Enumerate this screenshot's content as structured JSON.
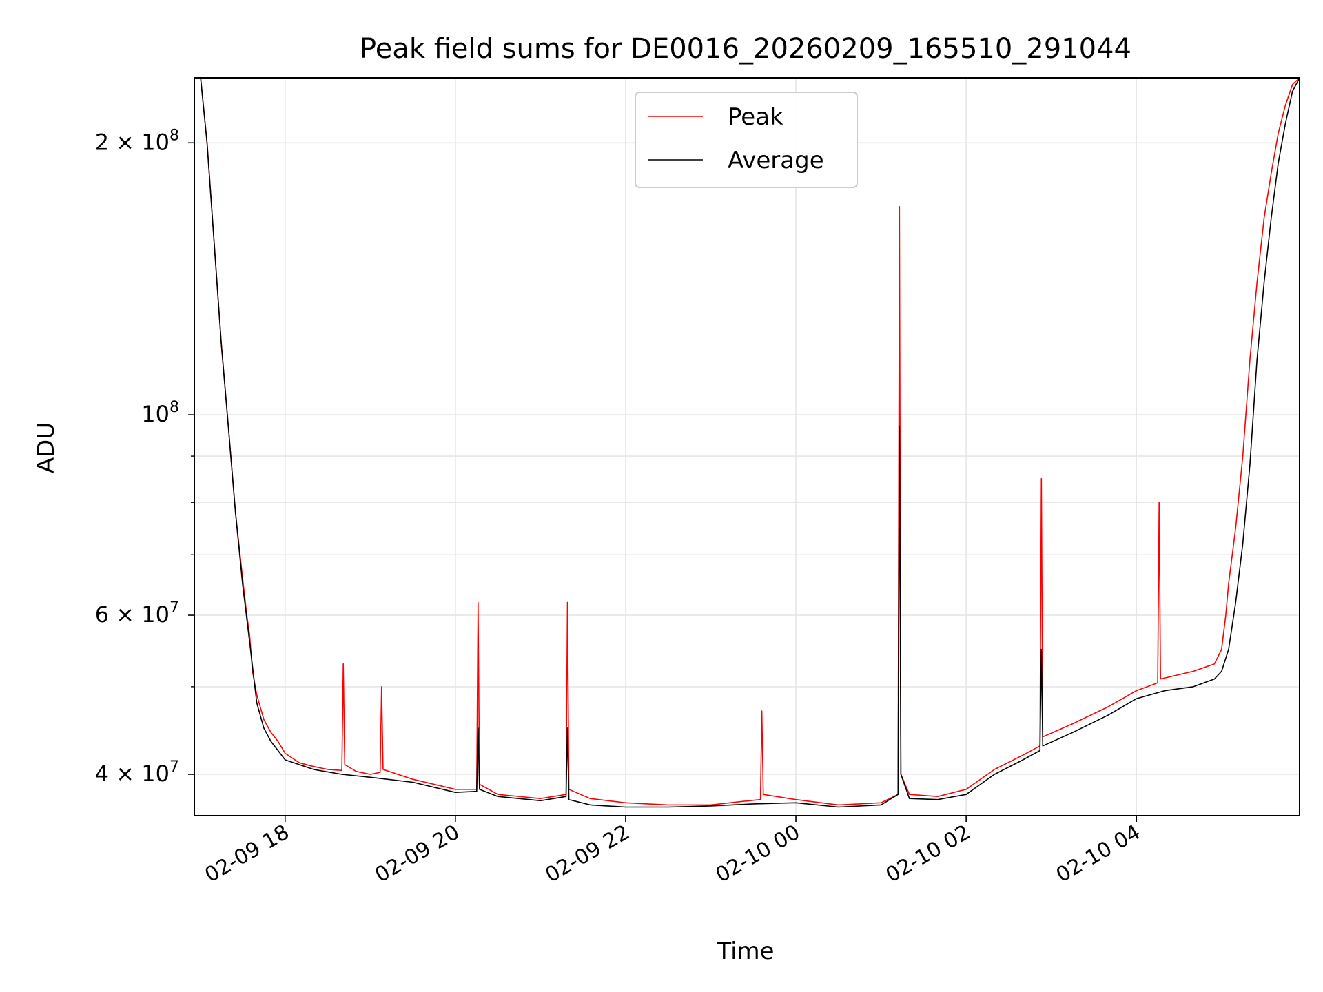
{
  "chart_data": {
    "type": "line",
    "title": "Peak field sums for DE0016_20260209_165510_291044",
    "xlabel": "Time",
    "ylabel": "ADU",
    "yscale": "log",
    "ylim": [
      36000000,
      236000000
    ],
    "xlim": [
      "2026-02-09 16:56",
      "2026-02-10 05:55"
    ],
    "grid": true,
    "legend_position": "upper center",
    "x_ticks": [
      {
        "value": "2026-02-09 18:00",
        "label": "02-09 18"
      },
      {
        "value": "2026-02-09 20:00",
        "label": "02-09 20"
      },
      {
        "value": "2026-02-09 22:00",
        "label": "02-09 22"
      },
      {
        "value": "2026-02-10 00:00",
        "label": "02-10 00"
      },
      {
        "value": "2026-02-10 02:00",
        "label": "02-10 02"
      },
      {
        "value": "2026-02-10 04:00",
        "label": "02-10 04"
      }
    ],
    "y_ticks": [
      {
        "value": 40000000,
        "base": "4 × 10",
        "exp": "7"
      },
      {
        "value": 60000000,
        "base": "6 × 10",
        "exp": "7"
      },
      {
        "value": 100000000,
        "base": "10",
        "exp": "8"
      },
      {
        "value": 200000000,
        "base": "2 × 10",
        "exp": "8"
      }
    ],
    "y_minor_ticks": [
      50000000,
      70000000,
      80000000,
      90000000
    ],
    "series": [
      {
        "name": "Peak",
        "color": "#ff0000",
        "x": [
          "2026-02-09 17:00",
          "2026-02-09 17:05",
          "2026-02-09 17:10",
          "2026-02-09 17:15",
          "2026-02-09 17:20",
          "2026-02-09 17:25",
          "2026-02-09 17:30",
          "2026-02-09 17:33",
          "2026-02-09 17:35",
          "2026-02-09 17:37",
          "2026-02-09 17:40",
          "2026-02-09 17:45",
          "2026-02-09 17:50",
          "2026-02-09 17:55",
          "2026-02-09 18:00",
          "2026-02-09 18:10",
          "2026-02-09 18:20",
          "2026-02-09 18:30",
          "2026-02-09 18:40",
          "2026-02-09 18:41",
          "2026-02-09 18:42",
          "2026-02-09 18:50",
          "2026-02-09 19:00",
          "2026-02-09 19:07",
          "2026-02-09 19:08",
          "2026-02-09 19:09",
          "2026-02-09 19:30",
          "2026-02-09 20:00",
          "2026-02-09 20:15",
          "2026-02-09 20:16",
          "2026-02-09 20:17",
          "2026-02-09 20:30",
          "2026-02-09 21:00",
          "2026-02-09 21:18",
          "2026-02-09 21:19",
          "2026-02-09 21:20",
          "2026-02-09 21:35",
          "2026-02-09 22:00",
          "2026-02-09 22:30",
          "2026-02-09 23:00",
          "2026-02-09 23:20",
          "2026-02-09 23:35",
          "2026-02-09 23:36",
          "2026-02-09 23:37",
          "2026-02-10 00:00",
          "2026-02-10 00:30",
          "2026-02-10 01:00",
          "2026-02-10 01:12",
          "2026-02-10 01:13",
          "2026-02-10 01:14",
          "2026-02-10 01:20",
          "2026-02-10 01:40",
          "2026-02-10 02:00",
          "2026-02-10 02:20",
          "2026-02-10 02:40",
          "2026-02-10 02:52",
          "2026-02-10 02:53",
          "2026-02-10 02:54",
          "2026-02-10 03:15",
          "2026-02-10 03:40",
          "2026-02-10 04:00",
          "2026-02-10 04:15",
          "2026-02-10 04:16",
          "2026-02-10 04:17",
          "2026-02-10 04:40",
          "2026-02-10 04:55",
          "2026-02-10 05:00",
          "2026-02-10 05:03",
          "2026-02-10 05:05",
          "2026-02-10 05:10",
          "2026-02-10 05:15",
          "2026-02-10 05:20",
          "2026-02-10 05:25",
          "2026-02-10 05:30",
          "2026-02-10 05:35",
          "2026-02-10 05:40",
          "2026-02-10 05:45",
          "2026-02-10 05:50",
          "2026-02-10 05:55"
        ],
        "y": [
          240000000,
          200000000,
          155000000,
          120000000,
          97000000,
          78000000,
          66000000,
          60000000,
          57000000,
          52000000,
          49000000,
          46000000,
          44500000,
          43500000,
          42200000,
          41200000,
          40800000,
          40500000,
          40400000,
          53000000,
          41000000,
          40300000,
          40000000,
          40200000,
          50000000,
          40500000,
          39500000,
          38500000,
          38500000,
          62000000,
          39000000,
          38000000,
          37600000,
          38000000,
          62000000,
          38500000,
          37600000,
          37200000,
          37000000,
          37000000,
          37300000,
          37500000,
          47000000,
          38000000,
          37500000,
          37000000,
          37200000,
          38000000,
          170000000,
          40000000,
          38000000,
          37800000,
          38500000,
          40500000,
          42000000,
          43000000,
          85000000,
          44000000,
          45500000,
          47500000,
          49500000,
          50500000,
          80000000,
          51000000,
          52000000,
          53000000,
          55000000,
          60000000,
          65000000,
          75000000,
          90000000,
          115000000,
          140000000,
          165000000,
          185000000,
          205000000,
          220000000,
          232000000,
          236000000
        ]
      },
      {
        "name": "Average",
        "color": "#000000",
        "x": [
          "2026-02-09 17:00",
          "2026-02-09 17:05",
          "2026-02-09 17:10",
          "2026-02-09 17:15",
          "2026-02-09 17:20",
          "2026-02-09 17:25",
          "2026-02-09 17:30",
          "2026-02-09 17:35",
          "2026-02-09 17:40",
          "2026-02-09 17:45",
          "2026-02-09 17:50",
          "2026-02-09 17:55",
          "2026-02-09 18:00",
          "2026-02-09 18:20",
          "2026-02-09 18:40",
          "2026-02-09 19:00",
          "2026-02-09 19:30",
          "2026-02-09 20:00",
          "2026-02-09 20:15",
          "2026-02-09 20:16",
          "2026-02-09 20:17",
          "2026-02-09 20:30",
          "2026-02-09 21:00",
          "2026-02-09 21:18",
          "2026-02-09 21:19",
          "2026-02-09 21:20",
          "2026-02-09 21:35",
          "2026-02-09 22:00",
          "2026-02-09 22:30",
          "2026-02-09 23:00",
          "2026-02-09 23:30",
          "2026-02-10 00:00",
          "2026-02-10 00:30",
          "2026-02-10 01:00",
          "2026-02-10 01:12",
          "2026-02-10 01:13",
          "2026-02-10 01:14",
          "2026-02-10 01:20",
          "2026-02-10 01:40",
          "2026-02-10 02:00",
          "2026-02-10 02:20",
          "2026-02-10 02:40",
          "2026-02-10 02:52",
          "2026-02-10 02:53",
          "2026-02-10 02:54",
          "2026-02-10 03:15",
          "2026-02-10 03:40",
          "2026-02-10 04:00",
          "2026-02-10 04:20",
          "2026-02-10 04:40",
          "2026-02-10 04:55",
          "2026-02-10 05:00",
          "2026-02-10 05:05",
          "2026-02-10 05:10",
          "2026-02-10 05:15",
          "2026-02-10 05:20",
          "2026-02-10 05:25",
          "2026-02-10 05:30",
          "2026-02-10 05:35",
          "2026-02-10 05:40",
          "2026-02-10 05:45",
          "2026-02-10 05:50",
          "2026-02-10 05:55"
        ],
        "y": [
          240000000,
          200000000,
          155000000,
          120000000,
          97000000,
          78000000,
          65000000,
          56000000,
          48000000,
          45000000,
          43500000,
          42500000,
          41500000,
          40500000,
          40000000,
          39700000,
          39200000,
          38200000,
          38300000,
          45000000,
          38500000,
          37800000,
          37400000,
          37800000,
          45000000,
          37500000,
          37000000,
          36800000,
          36800000,
          36900000,
          37100000,
          37200000,
          36800000,
          37000000,
          38000000,
          97000000,
          40000000,
          37600000,
          37500000,
          38000000,
          40000000,
          41500000,
          42500000,
          55000000,
          43000000,
          44500000,
          46500000,
          48500000,
          49500000,
          50000000,
          51000000,
          52000000,
          55000000,
          62000000,
          72000000,
          88000000,
          115000000,
          140000000,
          165000000,
          190000000,
          210000000,
          228000000,
          236000000
        ]
      }
    ]
  }
}
